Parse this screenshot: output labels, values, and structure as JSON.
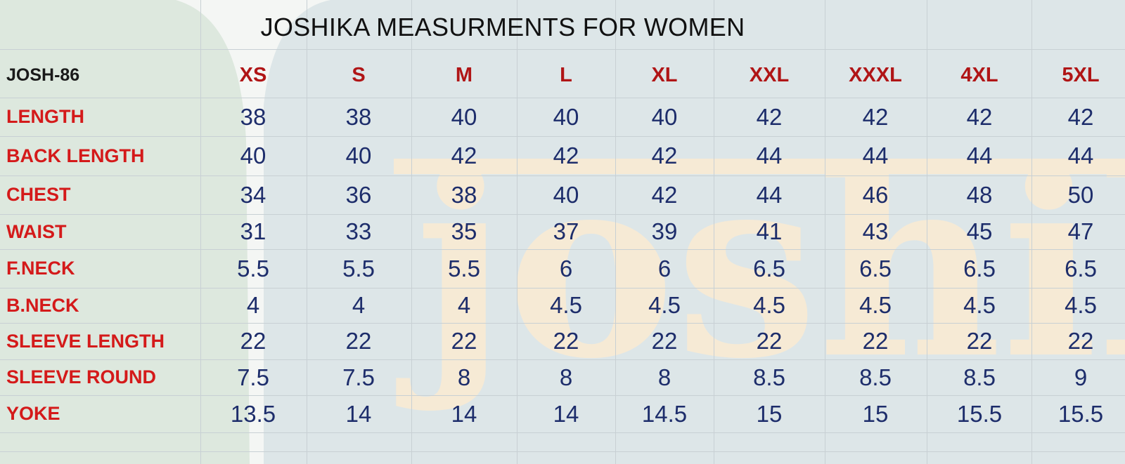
{
  "sheet": {
    "title": "JOSHIKA MEASURMENTS FOR WOMEN",
    "code": "JOSH-86",
    "watermark": "joshika",
    "sizes": [
      "XS",
      "S",
      "M",
      "L",
      "XL",
      "XXL",
      "XXXL",
      "4XL",
      "5XL"
    ],
    "rows": [
      {
        "label": "LENGTH",
        "values": [
          "38",
          "38",
          "40",
          "40",
          "40",
          "42",
          "42",
          "42",
          "42"
        ]
      },
      {
        "label": "BACK LENGTH",
        "values": [
          "40",
          "40",
          "42",
          "42",
          "42",
          "44",
          "44",
          "44",
          "44"
        ]
      },
      {
        "label": "CHEST",
        "values": [
          "34",
          "36",
          "38",
          "40",
          "42",
          "44",
          "46",
          "48",
          "50"
        ]
      },
      {
        "label": "WAIST",
        "values": [
          "31",
          "33",
          "35",
          "37",
          "39",
          "41",
          "43",
          "45",
          "47"
        ]
      },
      {
        "label": "F.NECK",
        "values": [
          "5.5",
          "5.5",
          "5.5",
          "6",
          "6",
          "6.5",
          "6.5",
          "6.5",
          "6.5"
        ]
      },
      {
        "label": "B.NECK",
        "values": [
          "4",
          "4",
          "4",
          "4.5",
          "4.5",
          "4.5",
          "4.5",
          "4.5",
          "4.5"
        ]
      },
      {
        "label": "SLEEVE LENGTH",
        "values": [
          "22",
          "22",
          "22",
          "22",
          "22",
          "22",
          "22",
          "22",
          "22"
        ]
      },
      {
        "label": "SLEEVE ROUND",
        "values": [
          "7.5",
          "7.5",
          "8",
          "8",
          "8",
          "8.5",
          "8.5",
          "8.5",
          "9"
        ]
      },
      {
        "label": "YOKE",
        "values": [
          "13.5",
          "14",
          "14",
          "14",
          "14.5",
          "15",
          "15",
          "15.5",
          "15.5"
        ]
      }
    ]
  },
  "colors": {
    "label_red": "#d41a1a",
    "size_red": "#b01516",
    "value_navy": "#1d2d6b",
    "watermark_cream": "#f6ead5",
    "panel_blue": "#dde6e8",
    "panel_green": "#dde8de"
  }
}
